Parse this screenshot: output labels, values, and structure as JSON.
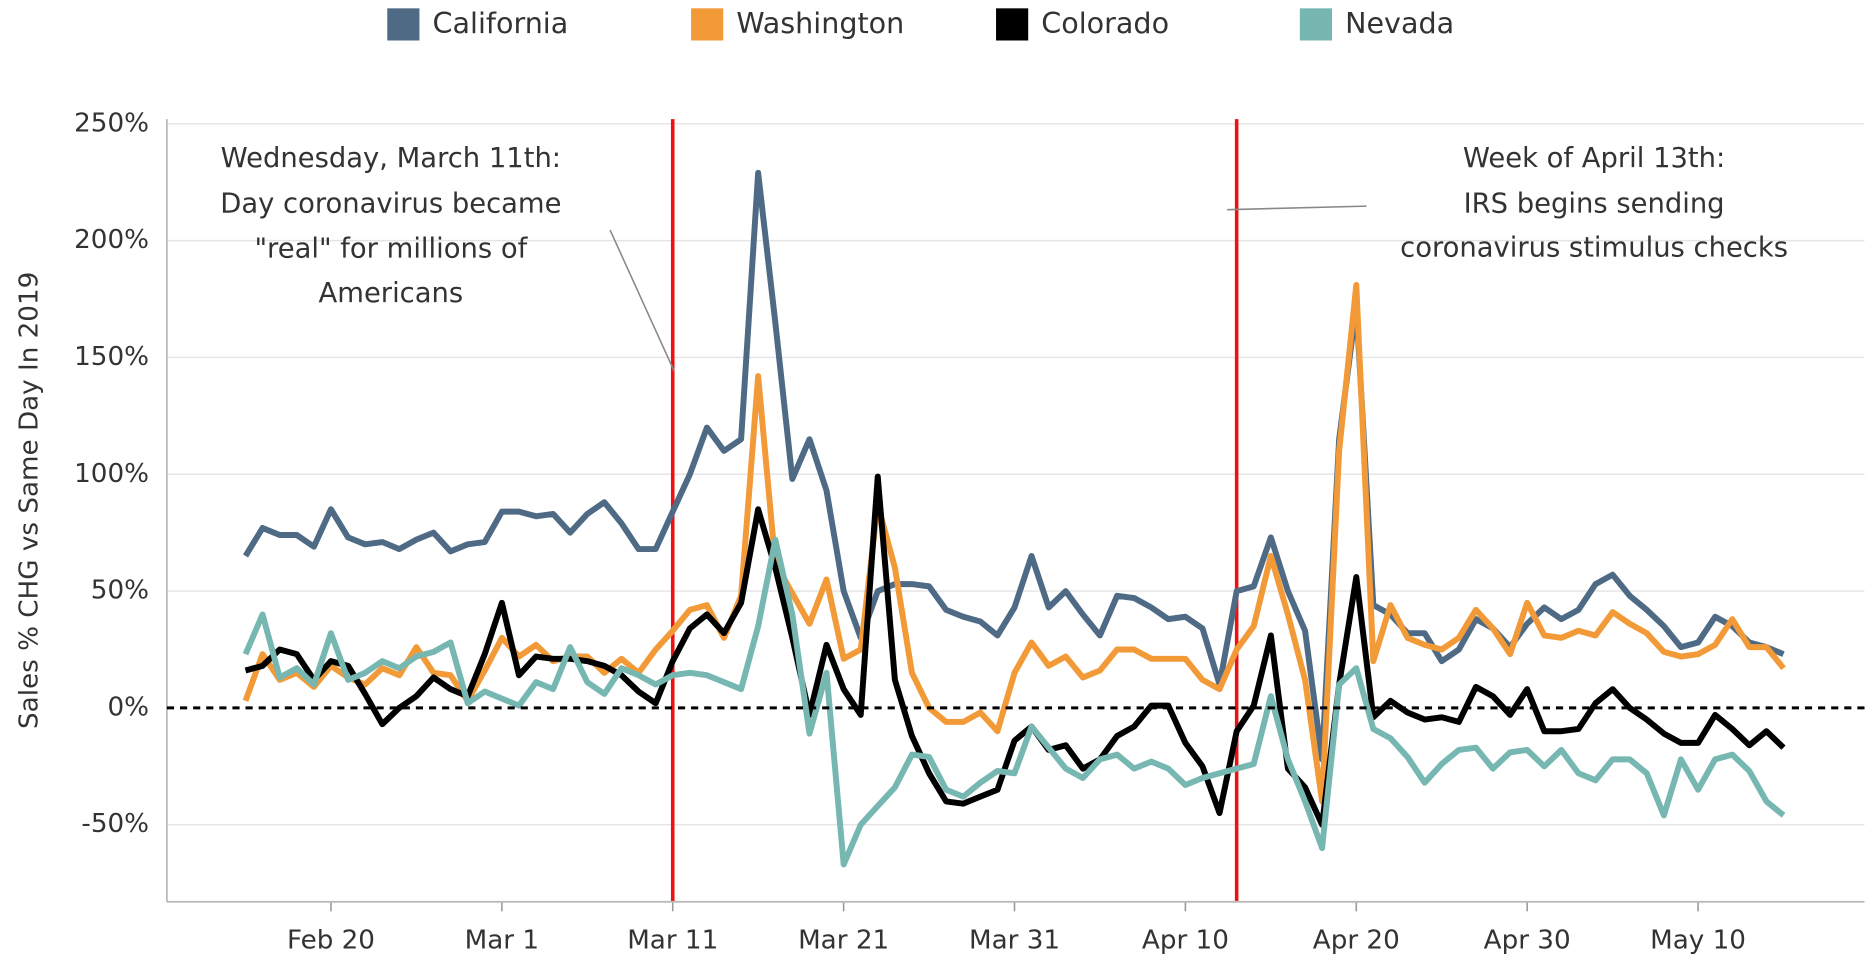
{
  "chart_data": {
    "type": "line",
    "y_label": "Sales % CHG vs Same Day In 2019",
    "x": [
      "Feb 15",
      "Feb 16",
      "Feb 17",
      "Feb 18",
      "Feb 19",
      "Feb 20",
      "Feb 21",
      "Feb 22",
      "Feb 23",
      "Feb 24",
      "Feb 25",
      "Feb 26",
      "Feb 27",
      "Feb 28",
      "Feb 29",
      "Mar 1",
      "Mar 2",
      "Mar 3",
      "Mar 4",
      "Mar 5",
      "Mar 6",
      "Mar 7",
      "Mar 8",
      "Mar 9",
      "Mar 10",
      "Mar 11",
      "Mar 12",
      "Mar 13",
      "Mar 14",
      "Mar 15",
      "Mar 16",
      "Mar 17",
      "Mar 18",
      "Mar 19",
      "Mar 20",
      "Mar 21",
      "Mar 22",
      "Mar 23",
      "Mar 24",
      "Mar 25",
      "Mar 26",
      "Mar 27",
      "Mar 28",
      "Mar 29",
      "Mar 30",
      "Mar 31",
      "Apr 1",
      "Apr 2",
      "Apr 3",
      "Apr 4",
      "Apr 5",
      "Apr 6",
      "Apr 7",
      "Apr 8",
      "Apr 9",
      "Apr 10",
      "Apr 11",
      "Apr 12",
      "Apr 13",
      "Apr 14",
      "Apr 15",
      "Apr 16",
      "Apr 17",
      "Apr 18",
      "Apr 19",
      "Apr 20",
      "Apr 21",
      "Apr 22",
      "Apr 23",
      "Apr 24",
      "Apr 25",
      "Apr 26",
      "Apr 27",
      "Apr 28",
      "Apr 29",
      "Apr 30",
      "May 1",
      "May 2",
      "May 3",
      "May 4",
      "May 5",
      "May 6",
      "May 7",
      "May 8",
      "May 9",
      "May 10",
      "May 11",
      "May 12",
      "May 13",
      "May 14",
      "May 15"
    ],
    "xticks": [
      "Feb 20",
      "Mar 1",
      "Mar 11",
      "Mar 21",
      "Mar 31",
      "Apr 10",
      "Apr 20",
      "Apr 30",
      "May 10"
    ],
    "ylim": [
      -83,
      252
    ],
    "yticks": [
      {
        "value": -50,
        "label": "-50%"
      },
      {
        "value": 0,
        "label": "0%"
      },
      {
        "value": 50,
        "label": "50%"
      },
      {
        "value": 100,
        "label": "100%"
      },
      {
        "value": 150,
        "label": "150%"
      },
      {
        "value": 200,
        "label": "200%"
      },
      {
        "value": 250,
        "label": "250%"
      }
    ],
    "grid": true,
    "legend": "top",
    "series": [
      {
        "name": "California",
        "color": "#4e6a84",
        "values": [
          65,
          77,
          74,
          74,
          69,
          85,
          73,
          70,
          71,
          68,
          72,
          75,
          67,
          70,
          71,
          84,
          84,
          82,
          83,
          75,
          83,
          88,
          79,
          68,
          68,
          84,
          100,
          120,
          110,
          115,
          229,
          165,
          98,
          115,
          93,
          50,
          30,
          50,
          53,
          53,
          52,
          42,
          39,
          37,
          31,
          43,
          65,
          43,
          50,
          40,
          31,
          48,
          47,
          43,
          38,
          39,
          34,
          10,
          50,
          52,
          73,
          50,
          33,
          -22,
          115,
          172,
          44,
          40,
          32,
          32,
          20,
          25,
          38,
          34,
          26,
          36,
          43,
          38,
          42,
          53,
          57,
          48,
          42,
          35,
          26,
          28,
          39,
          35,
          28,
          26,
          23
        ]
      },
      {
        "name": "Washington",
        "color": "#f39a38",
        "values": [
          3,
          23,
          12,
          15,
          9,
          18,
          13,
          10,
          17,
          14,
          26,
          15,
          14,
          3,
          16,
          30,
          22,
          27,
          20,
          22,
          22,
          15,
          21,
          15,
          25,
          33,
          42,
          44,
          30,
          48,
          142,
          62,
          49,
          36,
          55,
          21,
          25,
          87,
          60,
          15,
          0,
          -6,
          -6,
          -2,
          -10,
          15,
          28,
          18,
          22,
          13,
          16,
          25,
          25,
          21,
          21,
          21,
          12,
          8,
          25,
          35,
          65,
          40,
          12,
          -40,
          110,
          181,
          20,
          44,
          30,
          27,
          25,
          30,
          42,
          34,
          23,
          45,
          31,
          30,
          33,
          31,
          41,
          36,
          32,
          24,
          22,
          23,
          27,
          38,
          26,
          26,
          17
        ]
      },
      {
        "name": "Colorado",
        "color": "#000000",
        "values": [
          16,
          18,
          25,
          23,
          12,
          20,
          18,
          6,
          -7,
          0,
          5,
          13,
          8,
          5,
          23,
          45,
          14,
          22,
          21,
          21,
          20,
          18,
          14,
          7,
          2,
          20,
          34,
          40,
          32,
          45,
          85,
          60,
          30,
          -3,
          27,
          8,
          -3,
          99,
          12,
          -12,
          -28,
          -40,
          -41,
          -38,
          -35,
          -14,
          -8,
          -18,
          -16,
          -26,
          -22,
          -12,
          -8,
          1,
          1,
          -15,
          -25,
          -45,
          -10,
          1,
          31,
          -26,
          -34,
          -50,
          10,
          56,
          -4,
          3,
          -2,
          -5,
          -4,
          -6,
          9,
          5,
          -3,
          8,
          -10,
          -10,
          -9,
          2,
          8,
          0,
          -5,
          -11,
          -15,
          -15,
          -3,
          -9,
          -16,
          -10,
          -17
        ]
      },
      {
        "name": "Nevada",
        "color": "#76b7b2",
        "values": [
          23,
          40,
          13,
          17,
          10,
          32,
          12,
          15,
          20,
          17,
          22,
          24,
          28,
          2,
          7,
          4,
          1,
          11,
          8,
          26,
          11,
          6,
          17,
          14,
          10,
          14,
          15,
          14,
          11,
          8,
          35,
          72,
          40,
          -11,
          15,
          -67,
          -50,
          -42,
          -34,
          -20,
          -21,
          -35,
          -38,
          -32,
          -27,
          -28,
          -8,
          -17,
          -26,
          -30,
          -22,
          -20,
          -26,
          -23,
          -26,
          -33,
          -30,
          -28,
          -26,
          -24,
          5,
          -22,
          -40,
          -60,
          10,
          17,
          -9,
          -13,
          -21,
          -32,
          -24,
          -18,
          -17,
          -26,
          -19,
          -18,
          -25,
          -18,
          -28,
          -31,
          -22,
          -22,
          -28,
          -46,
          -22,
          -35,
          -22,
          -20,
          -27,
          -40,
          -46
        ]
      }
    ],
    "reference_lines": [
      {
        "x": "Mar 11",
        "color": "#ee1111"
      },
      {
        "x": "Apr 13",
        "color": "#ee1111"
      }
    ],
    "annotations": [
      {
        "lines": [
          "Wednesday, March 11th:",
          "Day coronavirus became",
          "\"real\" for millions of",
          "Americans"
        ]
      },
      {
        "lines": [
          "Week of April 13th:",
          "IRS begins sending",
          "coronavirus stimulus checks"
        ]
      }
    ]
  }
}
